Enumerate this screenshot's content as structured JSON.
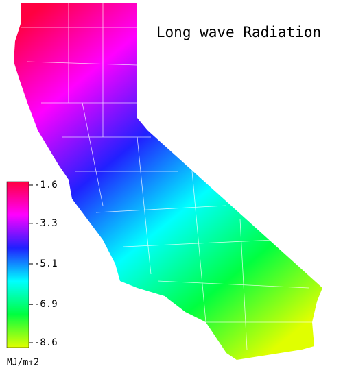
{
  "title": "Long wave Radiation",
  "colorbar": {
    "label": "MJ/m↑2",
    "ticks": [
      -1.6,
      -3.3,
      -5.1,
      -6.9,
      -8.6
    ],
    "colors": [
      "#ff0040",
      "#ff00ff",
      "#2020ff",
      "#00ffff",
      "#00ff40",
      "#e0ff00"
    ]
  }
}
